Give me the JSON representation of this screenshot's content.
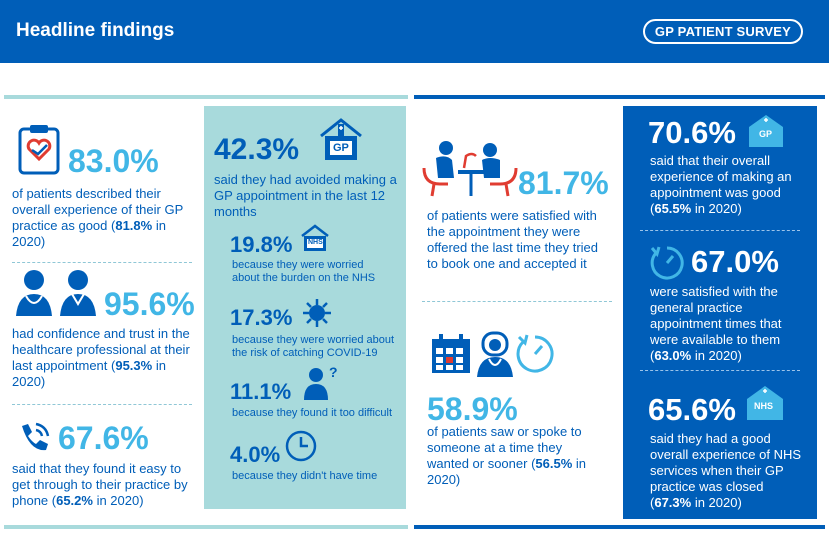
{
  "header": {
    "title": "Headline findings",
    "badge": "GP PATIENT SURVEY"
  },
  "col1": {
    "s1": {
      "value": "83.0%",
      "text_a": "of patients described their overall experience of their GP practice as good (",
      "bold": "81.8%",
      "text_b": " in 2020)"
    },
    "s2": {
      "value": "95.6%",
      "text_a": "had confidence and trust in the healthcare professional at their last appointment (",
      "bold": "95.3%",
      "text_b": " in 2020)"
    },
    "s3": {
      "value": "67.6%",
      "text_a": "said that they found it easy to get through to their practice by phone (",
      "bold": "65.2%",
      "text_b": " in 2020)"
    }
  },
  "col2": {
    "main": {
      "value": "42.3%",
      "text": "said they had avoided making a GP appointment in the last 12 months"
    },
    "r1": {
      "value": "19.8%",
      "text": "because they were worried about the burden on the NHS"
    },
    "r2": {
      "value": "17.3%",
      "text": "because they were worried about the risk of catching COVID-19"
    },
    "r3": {
      "value": "11.1%",
      "text": "because they found it too difficult"
    },
    "r4": {
      "value": "4.0%",
      "text": "because they didn't have time"
    }
  },
  "col3": {
    "s1": {
      "value": "81.7%",
      "text": "of patients were satisfied with the appointment they were offered the last time they tried to book one and accepted it"
    },
    "s2": {
      "value": "58.9%",
      "text_a": "of patients saw or spoke to someone at a time they wanted or sooner (",
      "bold": "56.5%",
      "text_b": " in 2020)"
    }
  },
  "col4": {
    "s1": {
      "value": "70.6%",
      "text_a": "said that their overall experience of making an appointment was good (",
      "bold": "65.5%",
      "text_b": " in 2020)"
    },
    "s2": {
      "value": "67.0%",
      "text_a": "were satisfied with the general practice appointment times that were available to them (",
      "bold": "63.0%",
      "text_b": " in 2020)"
    },
    "s3": {
      "value": "65.6%",
      "text_a": "said they had a good overall experience of NHS services when their GP practice was closed (",
      "bold": "67.3%",
      "text_b": " in 2020)"
    }
  },
  "icon_labels": {
    "gp": "GP",
    "nhs": "NHS",
    "q": "?"
  },
  "colors": {
    "nhs_blue": "#005eb8",
    "light_blue": "#41b6e6",
    "aqua": "#a8dadc",
    "red": "#e03c31"
  }
}
